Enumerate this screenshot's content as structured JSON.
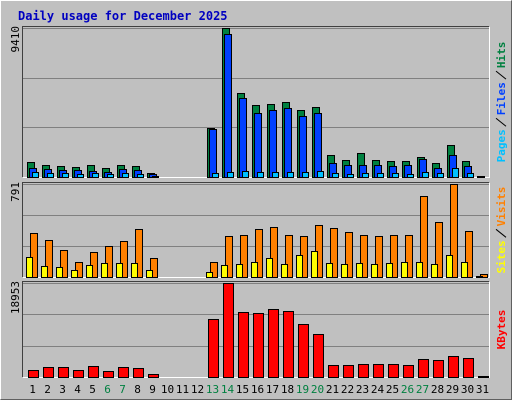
{
  "chart_data": [
    {
      "type": "bar",
      "title": "Daily usage for December 2025",
      "ylim": [
        0,
        9410
      ],
      "yticks": [
        9410
      ],
      "series": [
        {
          "name": "Hits",
          "color": "#008040",
          "values": [
            950,
            760,
            700,
            640,
            760,
            570,
            760,
            700,
            250,
            0,
            0,
            0,
            3100,
            9410,
            5300,
            4550,
            4620,
            4740,
            4230,
            4420,
            1390,
            1080,
            1520,
            1080,
            1010,
            1010,
            1260,
            890,
            2020,
            1010,
            60
          ]
        },
        {
          "name": "Files",
          "color": "#0040ff",
          "values": [
            570,
            510,
            450,
            450,
            380,
            320,
            510,
            450,
            190,
            0,
            0,
            0,
            3030,
            9030,
            5000,
            4050,
            4230,
            4360,
            3860,
            4050,
            890,
            760,
            760,
            760,
            700,
            760,
            1140,
            570,
            1390,
            700,
            30
          ]
        },
        {
          "name": "Pages",
          "color": "#00c0ff",
          "values": [
            310,
            250,
            250,
            190,
            250,
            190,
            250,
            190,
            60,
            0,
            0,
            0,
            250,
            320,
            380,
            320,
            320,
            320,
            320,
            380,
            250,
            190,
            250,
            250,
            250,
            190,
            320,
            250,
            570,
            250,
            10
          ]
        }
      ]
    },
    {
      "type": "bar",
      "ylim": [
        0,
        791
      ],
      "yticks": [
        791
      ],
      "series": [
        {
          "name": "Visits",
          "color": "#ff8000",
          "values": [
            374,
            315,
            230,
            128,
            213,
            264,
            306,
            408,
            162,
            0,
            0,
            0,
            128,
            349,
            357,
            408,
            425,
            357,
            349,
            442,
            416,
            383,
            357,
            349,
            357,
            357,
            689,
            468,
            791,
            391,
            25
          ]
        },
        {
          "name": "Sites",
          "color": "#ffff00",
          "values": [
            170,
            94,
            85,
            60,
            102,
            119,
            119,
            119,
            60,
            0,
            0,
            0,
            43,
            102,
            110,
            128,
            162,
            110,
            187,
            221,
            119,
            110,
            119,
            110,
            119,
            128,
            128,
            110,
            187,
            128,
            10
          ]
        }
      ]
    },
    {
      "type": "bar",
      "ylim": [
        0,
        18953
      ],
      "yticks": [
        18953
      ],
      "categories": [
        "1",
        "2",
        "3",
        "4",
        "5",
        "6",
        "7",
        "8",
        "9",
        "10",
        "11",
        "12",
        "13",
        "14",
        "15",
        "16",
        "17",
        "18",
        "19",
        "20",
        "21",
        "22",
        "23",
        "24",
        "25",
        "26",
        "27",
        "28",
        "29",
        "30",
        "31"
      ],
      "category_colors": [
        "#000000",
        "#000000",
        "#000000",
        "#000000",
        "#000000",
        "#008040",
        "#008040",
        "#000000",
        "#000000",
        "#000000",
        "#000000",
        "#000000",
        "#008040",
        "#008040",
        "#000000",
        "#000000",
        "#000000",
        "#000000",
        "#008040",
        "#008040",
        "#000000",
        "#000000",
        "#000000",
        "#000000",
        "#000000",
        "#008040",
        "#008040",
        "#000000",
        "#000000",
        "#000000",
        "#000000"
      ],
      "series": [
        {
          "name": "KBytes",
          "color": "#ff0000",
          "values": [
            1460,
            2080,
            2080,
            1460,
            2290,
            1250,
            2080,
            1870,
            620,
            0,
            0,
            0,
            11660,
            18953,
            13120,
            12910,
            13750,
            13330,
            10620,
            8750,
            2500,
            2500,
            2710,
            2710,
            2710,
            2500,
            3540,
            3330,
            4170,
            3750,
            200
          ]
        }
      ]
    }
  ]
}
